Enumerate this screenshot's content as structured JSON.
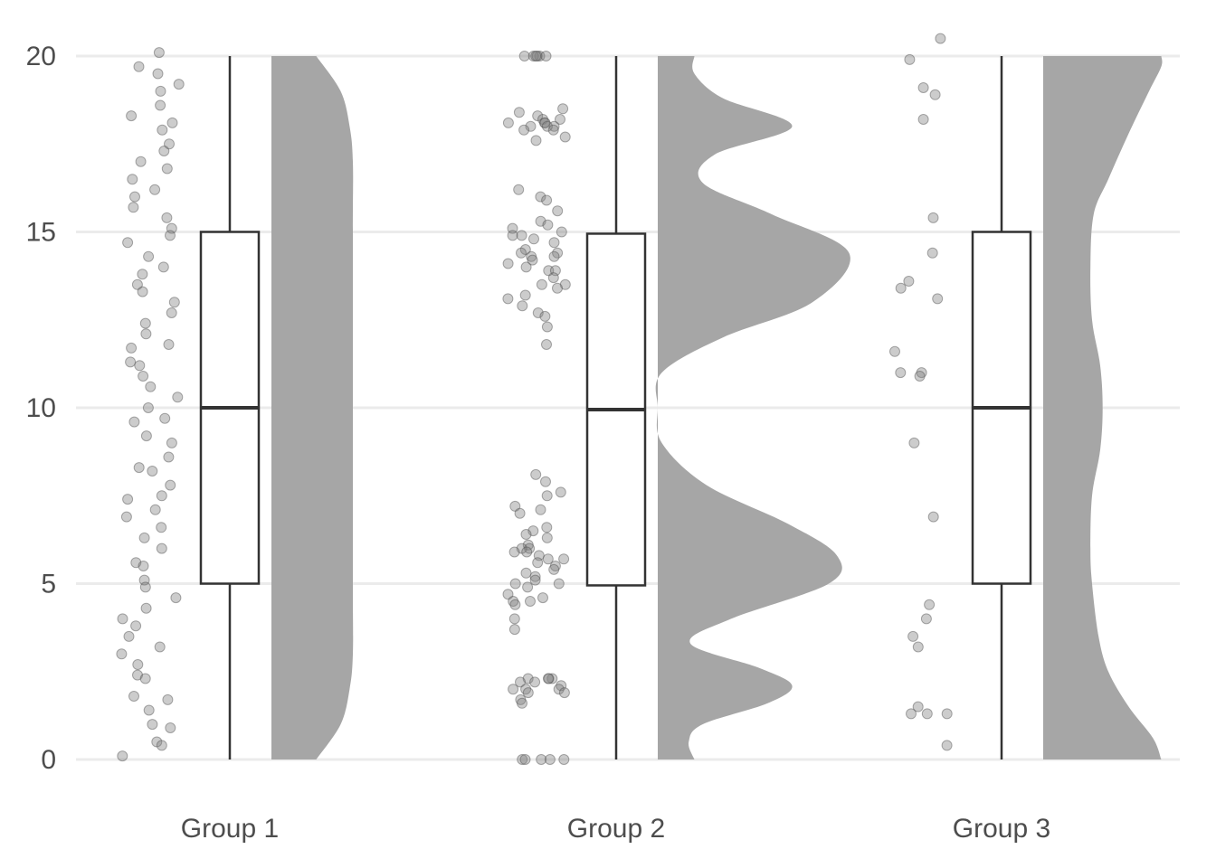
{
  "chart_data": {
    "type": "raincloud",
    "title": "",
    "xlabel": "",
    "ylabel": "",
    "ylim": [
      0,
      20
    ],
    "y_ticks": [
      0,
      5,
      10,
      15,
      20
    ],
    "grid": true,
    "colors": {
      "violin": "#a6a6a6",
      "box": "#333333",
      "points": "#7f7f7f",
      "grid": "#ebebeb",
      "text": "#4d4d4d"
    },
    "categories": [
      "Group 1",
      "Group 2",
      "Group 3"
    ],
    "groups": [
      {
        "label": "Group 1",
        "box": {
          "min": 0,
          "q1": 5,
          "median": 10,
          "q3": 15,
          "max": 20
        },
        "density": [
          [
            0,
            0.55
          ],
          [
            1,
            0.85
          ],
          [
            2,
            0.96
          ],
          [
            3,
            1.0
          ],
          [
            5,
            1.0
          ],
          [
            10,
            1.0
          ],
          [
            15,
            1.0
          ],
          [
            17,
            1.0
          ],
          [
            18,
            0.96
          ],
          [
            19,
            0.85
          ],
          [
            20,
            0.55
          ]
        ],
        "points": [
          20.1,
          19.7,
          19.5,
          19.2,
          19.0,
          18.6,
          18.3,
          18.1,
          17.9,
          17.5,
          17.3,
          17.0,
          16.8,
          16.5,
          16.2,
          16.0,
          15.7,
          15.4,
          15.1,
          14.9,
          14.7,
          14.3,
          14.0,
          13.8,
          13.5,
          13.3,
          13.0,
          12.7,
          12.4,
          12.1,
          11.8,
          11.7,
          11.3,
          11.2,
          10.9,
          10.6,
          10.3,
          10.0,
          9.7,
          9.6,
          9.2,
          9.0,
          8.6,
          8.3,
          8.2,
          7.8,
          7.5,
          7.4,
          7.1,
          6.9,
          6.6,
          6.3,
          6.0,
          5.6,
          5.5,
          5.1,
          4.9,
          4.6,
          4.3,
          4.0,
          3.8,
          3.5,
          3.2,
          3.0,
          2.7,
          2.4,
          2.3,
          1.8,
          1.7,
          1.4,
          1.0,
          0.9,
          0.5,
          0.4,
          0.1
        ]
      },
      {
        "label": "Group 2",
        "box": {
          "min": 0,
          "q1": 4.95,
          "median": 9.95,
          "q3": 14.95,
          "max": 20
        },
        "density": [
          [
            0,
            0.45
          ],
          [
            0.5,
            0.38
          ],
          [
            1.0,
            0.55
          ],
          [
            1.6,
            1.35
          ],
          [
            2.1,
            1.65
          ],
          [
            2.6,
            1.25
          ],
          [
            3.3,
            0.4
          ],
          [
            4.0,
            0.9
          ],
          [
            5.0,
            2.1
          ],
          [
            5.8,
            2.2
          ],
          [
            6.7,
            1.6
          ],
          [
            7.8,
            0.6
          ],
          [
            9.0,
            0.05
          ],
          [
            10.0,
            0.0
          ],
          [
            11.0,
            0.05
          ],
          [
            12.0,
            0.8
          ],
          [
            13.0,
            1.9
          ],
          [
            14.4,
            2.35
          ],
          [
            15.5,
            1.4
          ],
          [
            16.4,
            0.55
          ],
          [
            17.2,
            0.7
          ],
          [
            18.0,
            1.65
          ],
          [
            18.8,
            0.8
          ],
          [
            19.5,
            0.45
          ],
          [
            20.0,
            0.45
          ]
        ],
        "points": [
          20.0,
          20.0,
          20.0,
          20.0,
          20.0,
          20.0,
          18.5,
          18.4,
          18.3,
          18.2,
          18.2,
          18.1,
          18.1,
          18.1,
          18.0,
          18.0,
          18.0,
          17.9,
          17.9,
          17.7,
          17.6,
          16.2,
          16.0,
          15.9,
          15.6,
          15.3,
          15.2,
          15.1,
          15.0,
          14.9,
          14.9,
          14.8,
          14.7,
          14.5,
          14.4,
          14.4,
          14.3,
          14.3,
          14.2,
          14.1,
          14.0,
          13.9,
          13.9,
          13.7,
          13.5,
          13.5,
          13.4,
          13.2,
          13.1,
          12.9,
          12.7,
          12.6,
          12.3,
          11.8,
          8.1,
          7.9,
          7.6,
          7.5,
          7.2,
          7.1,
          7.0,
          6.6,
          6.5,
          6.4,
          6.3,
          6.1,
          6.0,
          6.0,
          5.9,
          5.9,
          5.8,
          5.7,
          5.7,
          5.6,
          5.5,
          5.4,
          5.3,
          5.2,
          5.1,
          5.0,
          5.0,
          4.9,
          4.7,
          4.6,
          4.5,
          4.5,
          4.4,
          4.0,
          3.7,
          2.3,
          2.3,
          2.3,
          2.3,
          2.2,
          2.2,
          2.1,
          2.0,
          2.0,
          2.0,
          1.9,
          1.9,
          1.7,
          1.6,
          0.0,
          0.0,
          0.0,
          0.0,
          0.0
        ]
      },
      {
        "label": "Group 3",
        "box": {
          "min": 0,
          "q1": 5,
          "median": 10,
          "q3": 15,
          "max": 20
        },
        "density": [
          [
            0,
            1.45
          ],
          [
            0.6,
            1.35
          ],
          [
            1.5,
            1.05
          ],
          [
            2.5,
            0.8
          ],
          [
            3.5,
            0.68
          ],
          [
            5.0,
            0.6
          ],
          [
            6.0,
            0.58
          ],
          [
            7.5,
            0.6
          ],
          [
            8.8,
            0.7
          ],
          [
            10.0,
            0.73
          ],
          [
            11.2,
            0.7
          ],
          [
            12.5,
            0.6
          ],
          [
            14.0,
            0.58
          ],
          [
            15.5,
            0.62
          ],
          [
            16.5,
            0.8
          ],
          [
            17.8,
            1.05
          ],
          [
            19.0,
            1.3
          ],
          [
            19.7,
            1.45
          ],
          [
            20.0,
            1.45
          ]
        ],
        "points": [
          20.5,
          19.9,
          19.1,
          18.9,
          18.2,
          15.4,
          14.4,
          13.6,
          13.4,
          13.1,
          11.6,
          11.0,
          11.0,
          10.9,
          9.0,
          6.9,
          4.4,
          4.0,
          3.5,
          3.2,
          1.5,
          1.3,
          1.3,
          1.3,
          0.4
        ]
      }
    ]
  }
}
